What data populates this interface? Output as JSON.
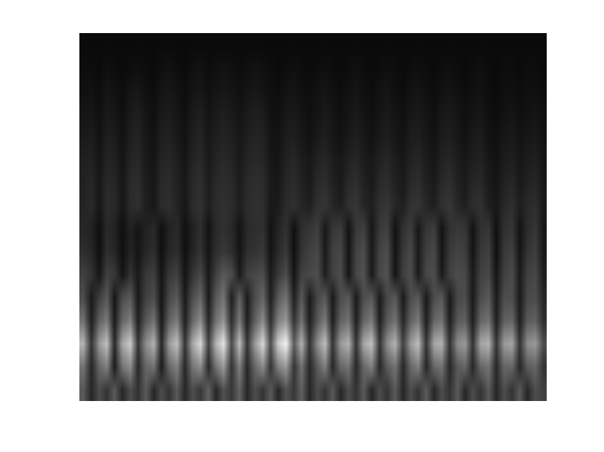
{
  "chart_data": {
    "type": "heatmap",
    "color": "gray",
    "tick_labels": false,
    "zlim": [
      0,
      100
    ],
    "cells": [
      [
        4,
        4,
        4,
        4,
        4,
        4,
        4,
        4,
        4,
        4,
        4,
        4,
        4,
        4,
        4,
        4,
        4,
        4,
        4,
        4,
        4,
        4,
        4,
        4,
        4,
        4,
        4,
        4,
        4,
        4,
        4,
        4,
        4,
        4,
        4,
        4,
        4,
        4,
        4,
        4,
        4,
        4,
        4,
        4,
        4,
        4,
        4,
        4,
        4,
        4,
        4,
        4,
        4,
        4,
        4,
        4,
        4,
        4,
        4,
        4
      ],
      [
        5,
        5,
        4,
        6,
        5,
        4,
        5,
        6,
        5,
        4,
        6,
        7,
        5,
        4,
        6,
        7,
        5,
        6,
        7,
        6,
        5,
        6,
        7,
        6,
        5,
        4,
        5,
        6,
        5,
        4,
        5,
        6,
        5,
        4,
        5,
        6,
        5,
        4,
        5,
        6,
        5,
        4,
        5,
        6,
        5,
        4,
        5,
        6,
        5,
        4,
        5,
        6,
        5,
        4,
        5,
        5,
        4,
        5,
        5,
        4
      ],
      [
        6,
        7,
        5,
        8,
        7,
        5,
        8,
        9,
        6,
        5,
        8,
        9,
        7,
        5,
        8,
        9,
        6,
        8,
        9,
        8,
        6,
        8,
        9,
        8,
        6,
        5,
        7,
        8,
        6,
        5,
        7,
        8,
        6,
        5,
        7,
        8,
        6,
        5,
        7,
        8,
        6,
        5,
        7,
        8,
        6,
        5,
        7,
        8,
        6,
        5,
        6,
        7,
        5,
        4,
        6,
        6,
        5,
        6,
        6,
        5
      ],
      [
        8,
        9,
        6,
        10,
        9,
        6,
        10,
        12,
        8,
        6,
        10,
        11,
        9,
        6,
        10,
        12,
        8,
        10,
        12,
        10,
        8,
        10,
        12,
        11,
        7,
        6,
        9,
        10,
        8,
        6,
        8,
        10,
        8,
        6,
        8,
        10,
        8,
        6,
        8,
        10,
        8,
        6,
        9,
        10,
        8,
        6,
        9,
        10,
        8,
        6,
        8,
        9,
        6,
        5,
        7,
        8,
        6,
        7,
        8,
        6
      ],
      [
        10,
        11,
        7,
        12,
        11,
        7,
        12,
        14,
        9,
        7,
        12,
        13,
        10,
        7,
        12,
        14,
        9,
        12,
        14,
        12,
        9,
        12,
        14,
        13,
        8,
        7,
        11,
        12,
        9,
        7,
        10,
        12,
        9,
        7,
        10,
        12,
        9,
        7,
        10,
        12,
        9,
        7,
        11,
        12,
        9,
        7,
        11,
        12,
        9,
        7,
        10,
        11,
        7,
        6,
        9,
        10,
        7,
        9,
        10,
        7
      ],
      [
        12,
        13,
        8,
        14,
        13,
        8,
        14,
        16,
        10,
        8,
        14,
        15,
        12,
        8,
        14,
        16,
        10,
        14,
        16,
        14,
        10,
        14,
        16,
        15,
        9,
        8,
        13,
        15,
        11,
        9,
        13,
        15,
        11,
        9,
        13,
        15,
        11,
        9,
        13,
        15,
        11,
        9,
        13,
        15,
        11,
        9,
        13,
        15,
        11,
        9,
        12,
        13,
        9,
        7,
        11,
        12,
        9,
        11,
        12,
        8
      ],
      [
        13,
        15,
        9,
        16,
        15,
        9,
        16,
        18,
        11,
        9,
        16,
        17,
        13,
        9,
        16,
        18,
        11,
        16,
        18,
        16,
        11,
        16,
        18,
        17,
        10,
        9,
        15,
        17,
        13,
        10,
        16,
        18,
        13,
        10,
        16,
        18,
        13,
        10,
        16,
        18,
        13,
        10,
        16,
        18,
        13,
        10,
        16,
        18,
        13,
        10,
        15,
        16,
        10,
        8,
        13,
        15,
        10,
        13,
        15,
        9
      ],
      [
        14,
        16,
        9,
        17,
        16,
        9,
        17,
        19,
        12,
        9,
        17,
        18,
        14,
        9,
        17,
        19,
        12,
        17,
        19,
        17,
        12,
        17,
        19,
        18,
        10,
        10,
        17,
        19,
        15,
        12,
        19,
        21,
        15,
        12,
        19,
        21,
        15,
        12,
        19,
        21,
        15,
        12,
        19,
        21,
        15,
        12,
        19,
        21,
        15,
        12,
        18,
        19,
        12,
        9,
        16,
        18,
        12,
        16,
        18,
        10
      ],
      [
        15,
        13,
        6,
        16,
        13,
        6,
        13,
        8,
        13,
        16,
        6,
        13,
        16,
        6,
        12,
        18,
        7,
        16,
        19,
        16,
        7,
        16,
        18,
        19,
        7,
        14,
        19,
        6,
        18,
        21,
        24,
        9,
        21,
        24,
        7,
        22,
        25,
        9,
        22,
        25,
        7,
        19,
        24,
        9,
        21,
        24,
        7,
        19,
        22,
        21,
        7,
        19,
        21,
        6,
        19,
        21,
        7,
        17,
        21,
        9
      ],
      [
        18,
        15,
        6,
        18,
        15,
        6,
        14,
        8,
        15,
        18,
        6,
        15,
        18,
        6,
        14,
        20,
        8,
        18,
        22,
        18,
        8,
        18,
        20,
        22,
        8,
        16,
        22,
        6,
        20,
        25,
        28,
        10,
        25,
        28,
        8,
        26,
        30,
        10,
        26,
        30,
        8,
        22,
        28,
        10,
        25,
        28,
        8,
        22,
        26,
        24,
        8,
        22,
        25,
        6,
        22,
        25,
        8,
        20,
        24,
        10
      ],
      [
        25,
        20,
        8,
        25,
        22,
        8,
        20,
        10,
        22,
        25,
        8,
        22,
        25,
        8,
        20,
        28,
        10,
        25,
        35,
        30,
        10,
        25,
        28,
        30,
        10,
        22,
        30,
        8,
        25,
        28,
        30,
        12,
        25,
        30,
        8,
        28,
        32,
        10,
        28,
        32,
        8,
        25,
        30,
        10,
        28,
        30,
        10,
        25,
        30,
        28,
        10,
        25,
        28,
        8,
        25,
        30,
        10,
        25,
        28,
        12
      ],
      [
        30,
        10,
        25,
        35,
        8,
        30,
        35,
        10,
        25,
        30,
        8,
        28,
        35,
        10,
        30,
        40,
        10,
        35,
        45,
        12,
        38,
        10,
        30,
        40,
        12,
        35,
        45,
        12,
        35,
        10,
        28,
        35,
        10,
        30,
        35,
        10,
        30,
        35,
        10,
        28,
        35,
        10,
        30,
        35,
        10,
        30,
        35,
        10,
        28,
        30,
        10,
        30,
        35,
        10,
        30,
        30,
        10,
        28,
        30,
        15
      ],
      [
        45,
        12,
        38,
        48,
        10,
        40,
        50,
        12,
        35,
        45,
        10,
        38,
        48,
        12,
        40,
        55,
        15,
        45,
        58,
        18,
        48,
        12,
        38,
        55,
        18,
        50,
        60,
        20,
        45,
        12,
        35,
        48,
        12,
        38,
        45,
        12,
        40,
        48,
        12,
        35,
        45,
        15,
        38,
        48,
        12,
        40,
        45,
        12,
        35,
        38,
        12,
        40,
        45,
        12,
        38,
        40,
        12,
        35,
        38,
        18
      ],
      [
        70,
        20,
        60,
        75,
        15,
        65,
        80,
        20,
        55,
        70,
        15,
        60,
        75,
        20,
        65,
        85,
        25,
        70,
        90,
        30,
        75,
        20,
        60,
        85,
        30,
        80,
        95,
        35,
        70,
        20,
        55,
        75,
        20,
        60,
        70,
        20,
        65,
        75,
        20,
        55,
        70,
        25,
        60,
        75,
        20,
        65,
        70,
        20,
        55,
        60,
        20,
        65,
        70,
        20,
        60,
        65,
        20,
        55,
        60,
        30
      ],
      [
        45,
        15,
        40,
        50,
        10,
        45,
        55,
        15,
        40,
        45,
        10,
        40,
        50,
        15,
        45,
        55,
        15,
        45,
        60,
        20,
        50,
        15,
        40,
        55,
        20,
        50,
        60,
        20,
        45,
        15,
        35,
        50,
        15,
        40,
        45,
        15,
        40,
        50,
        15,
        35,
        45,
        15,
        40,
        50,
        15,
        40,
        45,
        15,
        35,
        40,
        15,
        40,
        45,
        15,
        40,
        40,
        15,
        35,
        40,
        20
      ],
      [
        35,
        15,
        30,
        20,
        35,
        15,
        30,
        20,
        35,
        15,
        30,
        20,
        35,
        15,
        30,
        22,
        38,
        15,
        32,
        22,
        38,
        15,
        30,
        20,
        35,
        15,
        32,
        22,
        38,
        15,
        30,
        20,
        35,
        15,
        30,
        20,
        35,
        15,
        30,
        20,
        35,
        15,
        30,
        20,
        35,
        15,
        30,
        20,
        35,
        15,
        30,
        20,
        35,
        15,
        30,
        20,
        35,
        15,
        30,
        25
      ]
    ]
  }
}
